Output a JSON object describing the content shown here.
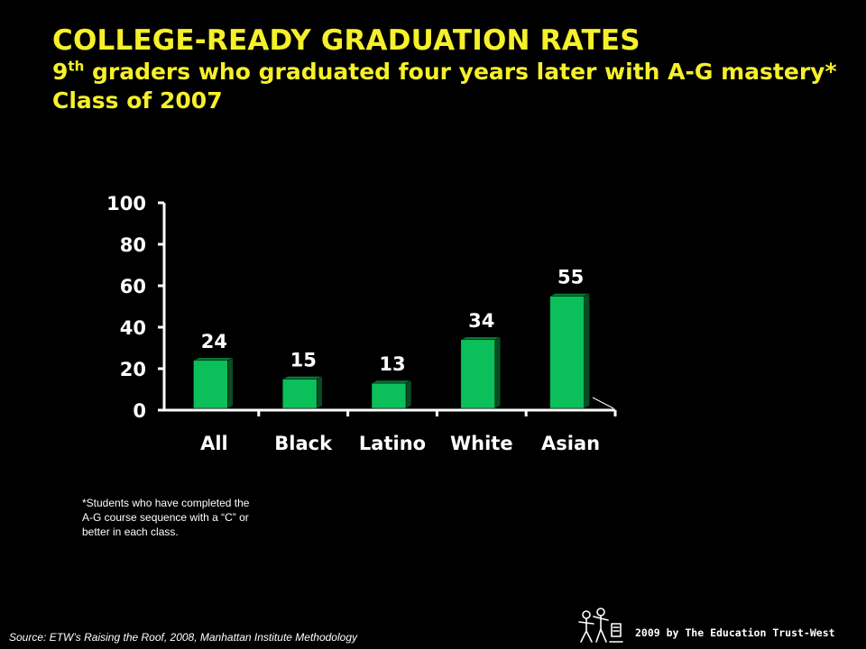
{
  "slide": {
    "title": "COLLEGE-READY GRADUATION RATES",
    "subtitle_prefix": "9",
    "subtitle_sup": "th",
    "subtitle_rest": " graders who graduated four years later with A-G mastery*",
    "subtitle_line3": "Class of 2007",
    "footnote": "*Students who have completed the A-G course sequence with a “C” or better in each class.",
    "source": "Source: ETW’s Raising the Roof, 2008, Manhattan Institute Methodology",
    "copyright": "2009 by The Education Trust-West",
    "logo_icon": "education-trust-west-logo-icon"
  },
  "colors": {
    "title": "#f5f02a",
    "bar_front": "#0bbf5a",
    "bar_side": "#064d24",
    "bar_top": "#067a36",
    "axis": "#ffffff",
    "text": "#ffffff"
  },
  "chart_data": {
    "type": "bar",
    "categories": [
      "All",
      "Black",
      "Latino",
      "White",
      "Asian"
    ],
    "values": [
      24,
      15,
      13,
      34,
      55
    ],
    "title": "",
    "xlabel": "",
    "ylabel": "",
    "ylim": [
      0,
      100
    ],
    "yticks": [
      0,
      20,
      40,
      60,
      80,
      100
    ],
    "data_labels": [
      "24",
      "15",
      "13",
      "34",
      "55"
    ],
    "grid": false,
    "legend": "none"
  }
}
